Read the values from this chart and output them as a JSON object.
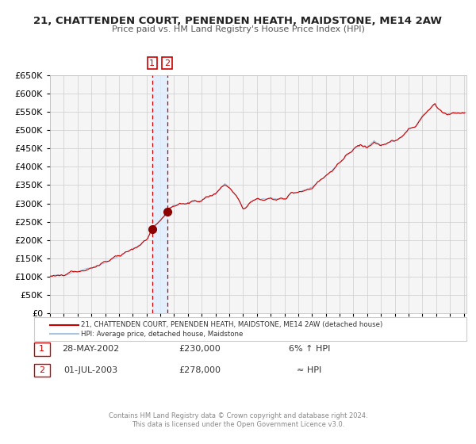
{
  "title": "21, CHATTENDEN COURT, PENENDEN HEATH, MAIDSTONE, ME14 2AW",
  "subtitle": "Price paid vs. HM Land Registry's House Price Index (HPI)",
  "legend_line1": "21, CHATTENDEN COURT, PENENDEN HEATH, MAIDSTONE, ME14 2AW (detached house)",
  "legend_line2": "HPI: Average price, detached house, Maidstone",
  "sale1_date": "28-MAY-2002",
  "sale1_price": "£230,000",
  "sale1_hpi": "6% ↑ HPI",
  "sale2_date": "01-JUL-2003",
  "sale2_price": "£278,000",
  "sale2_hpi": "≈ HPI",
  "footer1": "Contains HM Land Registry data © Crown copyright and database right 2024.",
  "footer2": "This data is licensed under the Open Government Licence v3.0.",
  "hpi_color": "#aac4dd",
  "price_color": "#cc0000",
  "bg_color": "#ffffff",
  "plot_bg_color": "#f5f5f5",
  "grid_color": "#cccccc",
  "sale1_x": 2002.41,
  "sale1_y": 230000,
  "sale2_x": 2003.5,
  "sale2_y": 278000,
  "ylim": [
    0,
    650000
  ],
  "xlim_start": 1995.0,
  "xlim_end": 2025.2,
  "anchors_t": [
    1995.0,
    1996.0,
    1997.0,
    1998.0,
    1999.0,
    2000.0,
    2001.0,
    2002.0,
    2002.41,
    2003.0,
    2003.5,
    2004.0,
    2005.0,
    2006.0,
    2007.0,
    2007.7,
    2008.5,
    2009.0,
    2009.5,
    2010.0,
    2011.0,
    2012.0,
    2012.5,
    2013.0,
    2014.0,
    2015.0,
    2016.0,
    2016.5,
    2017.0,
    2017.5,
    2018.0,
    2018.5,
    2019.0,
    2019.5,
    2020.0,
    2020.5,
    2021.0,
    2021.5,
    2022.0,
    2022.5,
    2022.9,
    2023.0,
    2023.5,
    2024.0,
    2024.5,
    2025.0
  ],
  "anchors_v": [
    100000,
    105000,
    115000,
    125000,
    138000,
    155000,
    175000,
    200000,
    230000,
    255000,
    278000,
    295000,
    300000,
    310000,
    325000,
    355000,
    320000,
    285000,
    300000,
    310000,
    315000,
    310000,
    325000,
    330000,
    345000,
    375000,
    410000,
    430000,
    450000,
    460000,
    455000,
    470000,
    460000,
    465000,
    470000,
    480000,
    500000,
    510000,
    540000,
    555000,
    575000,
    565000,
    550000,
    545000,
    550000,
    548000
  ]
}
